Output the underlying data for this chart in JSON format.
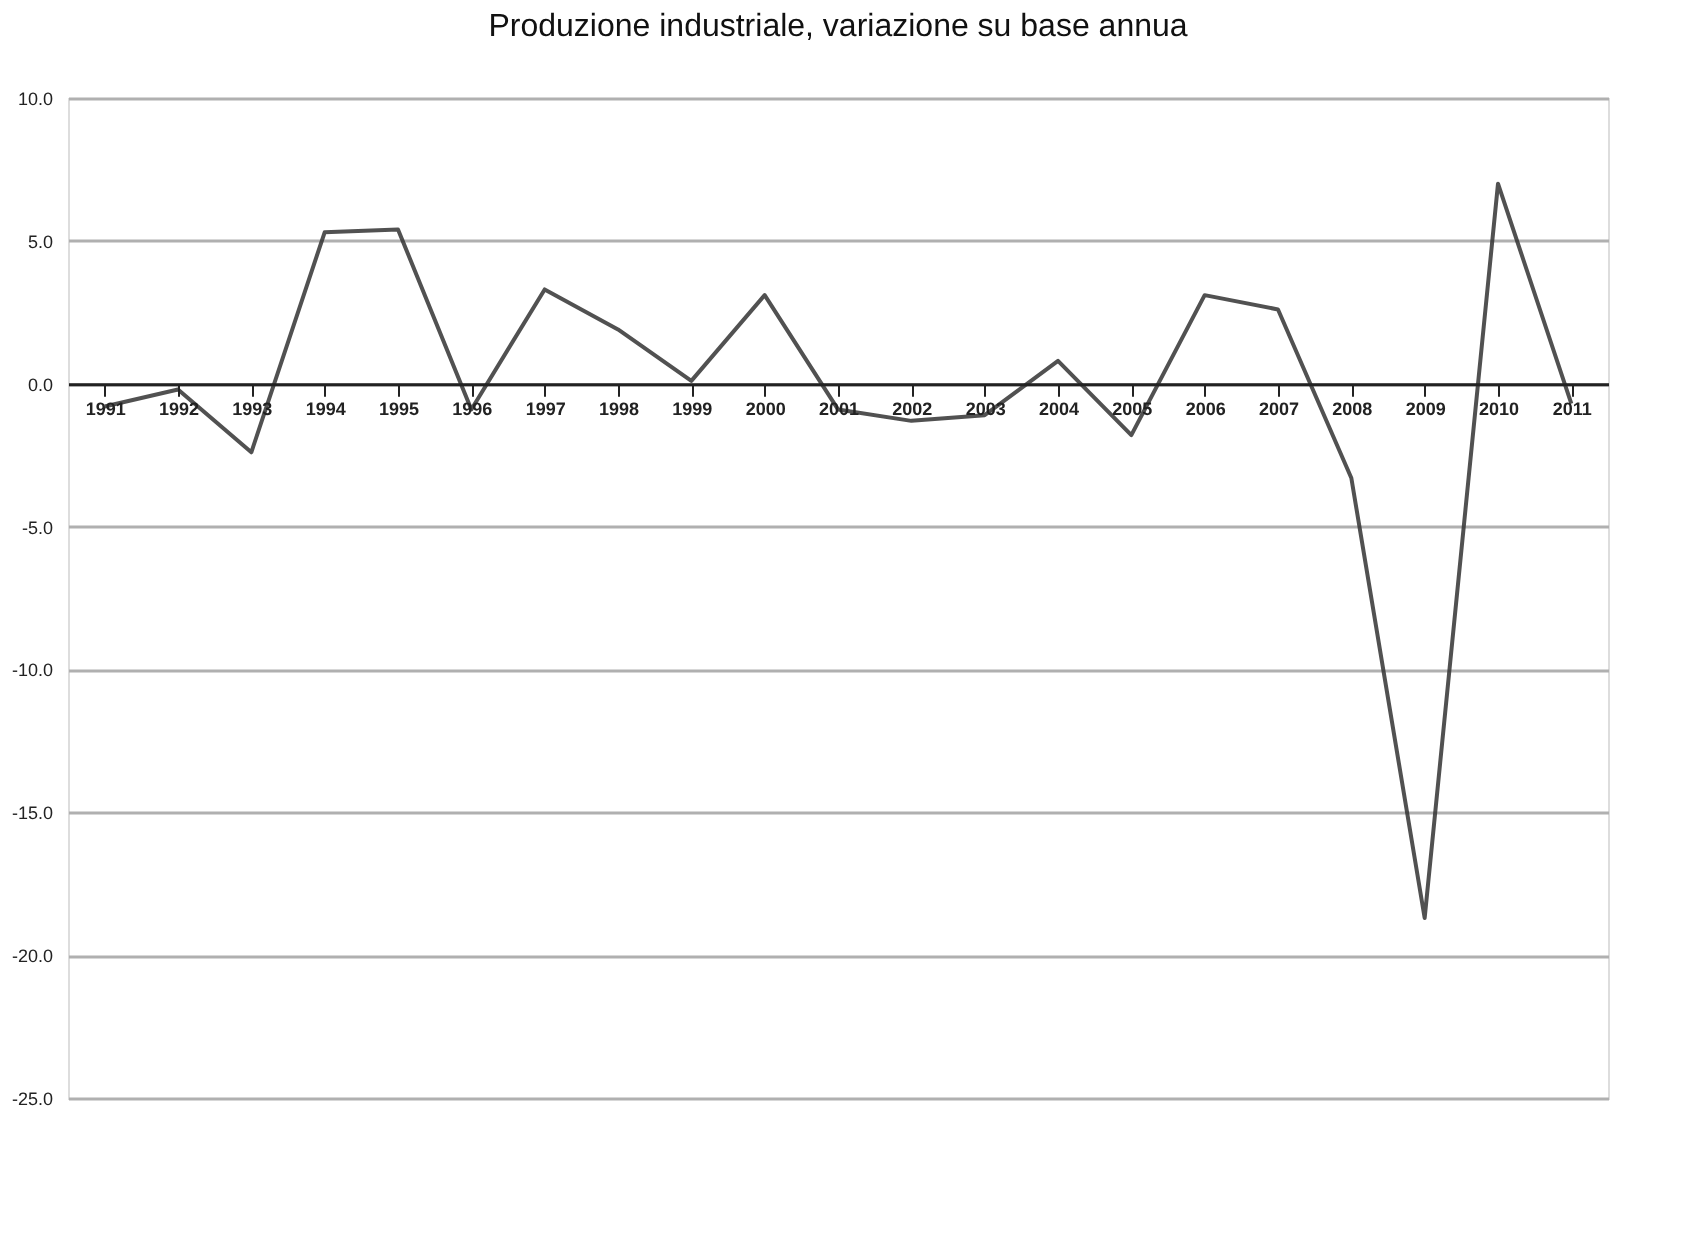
{
  "chart_data": {
    "type": "line",
    "title": "Produzione industriale, variazione su base annua",
    "categories": [
      "1991",
      "1992",
      "1993",
      "1994",
      "1995",
      "1996",
      "1997",
      "1998",
      "1999",
      "2000",
      "2001",
      "2002",
      "2003",
      "2004",
      "2005",
      "2006",
      "2007",
      "2008",
      "2009",
      "2010",
      "2011"
    ],
    "series": [
      {
        "color": "#333333",
        "values": [
          -0.8,
          -0.2,
          -2.4,
          5.3,
          5.4,
          -0.9,
          3.3,
          1.9,
          0.1,
          3.1,
          -0.9,
          -1.3,
          -1.1,
          0.8,
          -1.8,
          3.1,
          2.6,
          -3.3,
          -18.7,
          7.0,
          -0.7
        ]
      }
    ],
    "ylim": [
      -25,
      10
    ],
    "yticks": [
      {
        "value": -25,
        "label": "-25.0"
      },
      {
        "value": -20,
        "label": "-20.0"
      },
      {
        "value": -15,
        "label": "-15.0"
      },
      {
        "value": -10,
        "label": "-10.0"
      },
      {
        "value": -5,
        "label": "-5.0"
      },
      {
        "value": 0,
        "label": "0.0"
      },
      {
        "value": 5,
        "label": "5.0"
      },
      {
        "value": 10,
        "label": "10.0"
      }
    ],
    "grid": "y",
    "marker": "none",
    "line_style": "solid"
  }
}
